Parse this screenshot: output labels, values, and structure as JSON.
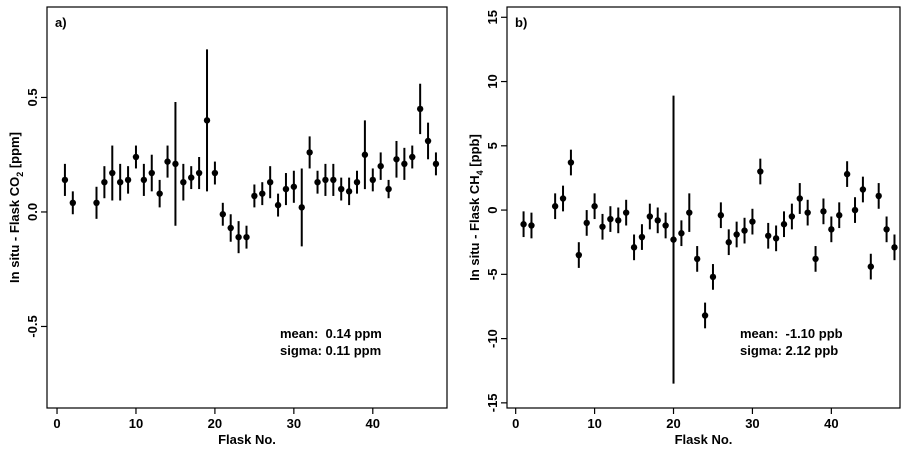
{
  "chart_data": [
    {
      "type": "scatter",
      "panel_label": "a)",
      "xlabel": "Flask No.",
      "ylabel": [
        "In situ - Flask CO",
        "2",
        " [ppm]"
      ],
      "annotations": [
        "mean:  0.14 ppm",
        "sigma: 0.11 ppm"
      ],
      "xlim": [
        -1.27,
        49.4
      ],
      "ylim": [
        -0.856,
        0.895
      ],
      "xticks": [
        0,
        10,
        20,
        30,
        40
      ],
      "yticks": [
        {
          "value": -0.5,
          "label": "-0.5"
        },
        {
          "value": 0,
          "label": "0.0"
        },
        {
          "value": 0.5,
          "label": "0.5"
        }
      ],
      "series": [
        {
          "color": "#000000",
          "x": [
            1,
            2,
            5,
            6,
            7,
            8,
            9,
            10,
            11,
            12,
            13,
            14,
            15,
            16,
            17,
            18,
            19,
            20,
            21,
            22,
            23,
            24,
            25,
            26,
            27,
            28,
            29,
            30,
            31,
            32,
            33,
            34,
            35,
            36,
            37,
            38,
            39,
            40,
            41,
            42,
            43,
            44,
            45,
            46,
            47,
            48
          ],
          "values": [
            0.14,
            0.04,
            0.04,
            0.13,
            0.17,
            0.13,
            0.14,
            0.24,
            0.14,
            0.17,
            0.08,
            0.22,
            0.21,
            0.13,
            0.15,
            0.17,
            0.4,
            0.17,
            -0.01,
            -0.07,
            -0.11,
            -0.11,
            0.07,
            0.08,
            0.13,
            0.03,
            0.1,
            0.11,
            0.02,
            0.26,
            0.13,
            0.14,
            0.14,
            0.1,
            0.09,
            0.13,
            0.25,
            0.14,
            0.2,
            0.1,
            0.23,
            0.21,
            0.24,
            0.45,
            0.31,
            0.21
          ],
          "errors": [
            0.07,
            0.05,
            0.07,
            0.07,
            0.12,
            0.08,
            0.06,
            0.05,
            0.07,
            0.08,
            0.06,
            0.07,
            0.27,
            0.08,
            0.05,
            0.07,
            0.31,
            0.05,
            0.05,
            0.06,
            0.07,
            0.05,
            0.05,
            0.05,
            0.07,
            0.05,
            0.07,
            0.07,
            0.17,
            0.07,
            0.05,
            0.07,
            0.07,
            0.05,
            0.06,
            0.05,
            0.15,
            0.05,
            0.06,
            0.04,
            0.08,
            0.07,
            0.05,
            0.11,
            0.08,
            0.05
          ]
        }
      ]
    },
    {
      "type": "scatter",
      "panel_label": "b)",
      "xlabel": "Flask No.",
      "ylabel": [
        "In situ - Flask CH",
        "4",
        " [ppb]"
      ],
      "annotations": [
        "mean:  -1.10 ppb",
        "sigma: 2.12 ppb"
      ],
      "xlim": [
        -1.1,
        48.7
      ],
      "ylim": [
        -15.4,
        15.8
      ],
      "xticks": [
        0,
        10,
        20,
        30,
        40
      ],
      "yticks": [
        -15,
        -10,
        -5,
        0,
        5,
        10,
        15
      ],
      "series": [
        {
          "color": "#000000",
          "x": [
            1,
            2,
            5,
            6,
            7,
            8,
            9,
            10,
            11,
            12,
            13,
            14,
            15,
            16,
            17,
            18,
            19,
            20,
            21,
            22,
            23,
            24,
            25,
            26,
            27,
            28,
            29,
            30,
            31,
            32,
            33,
            34,
            35,
            36,
            37,
            38,
            39,
            40,
            41,
            42,
            43,
            44,
            45,
            46,
            47,
            48
          ],
          "values": [
            -1.1,
            -1.2,
            0.3,
            0.9,
            3.7,
            -3.5,
            -1.0,
            0.3,
            -1.3,
            -0.7,
            -0.8,
            -0.2,
            -2.9,
            -2.1,
            -0.5,
            -0.8,
            -1.2,
            -2.3,
            -1.8,
            -0.2,
            -3.8,
            -8.2,
            -5.2,
            -0.4,
            -2.5,
            -1.9,
            -1.6,
            -0.9,
            3.0,
            -2.0,
            -2.2,
            -1.1,
            -0.5,
            0.9,
            -0.2,
            -3.8,
            -0.1,
            -1.5,
            -0.4,
            2.8,
            0.0,
            1.6,
            -4.4,
            1.1,
            -1.5,
            -2.9
          ],
          "errors": [
            1,
            1,
            1,
            1,
            1,
            1,
            1,
            1,
            1,
            1,
            1,
            1,
            1,
            1,
            1,
            1,
            1,
            11.2,
            1,
            1.5,
            1,
            1,
            1,
            1,
            1,
            1,
            1,
            1,
            1,
            1,
            1,
            1,
            1,
            1.2,
            1,
            1,
            1,
            1,
            1,
            1,
            1,
            1,
            1,
            1,
            1,
            1
          ]
        }
      ]
    }
  ]
}
